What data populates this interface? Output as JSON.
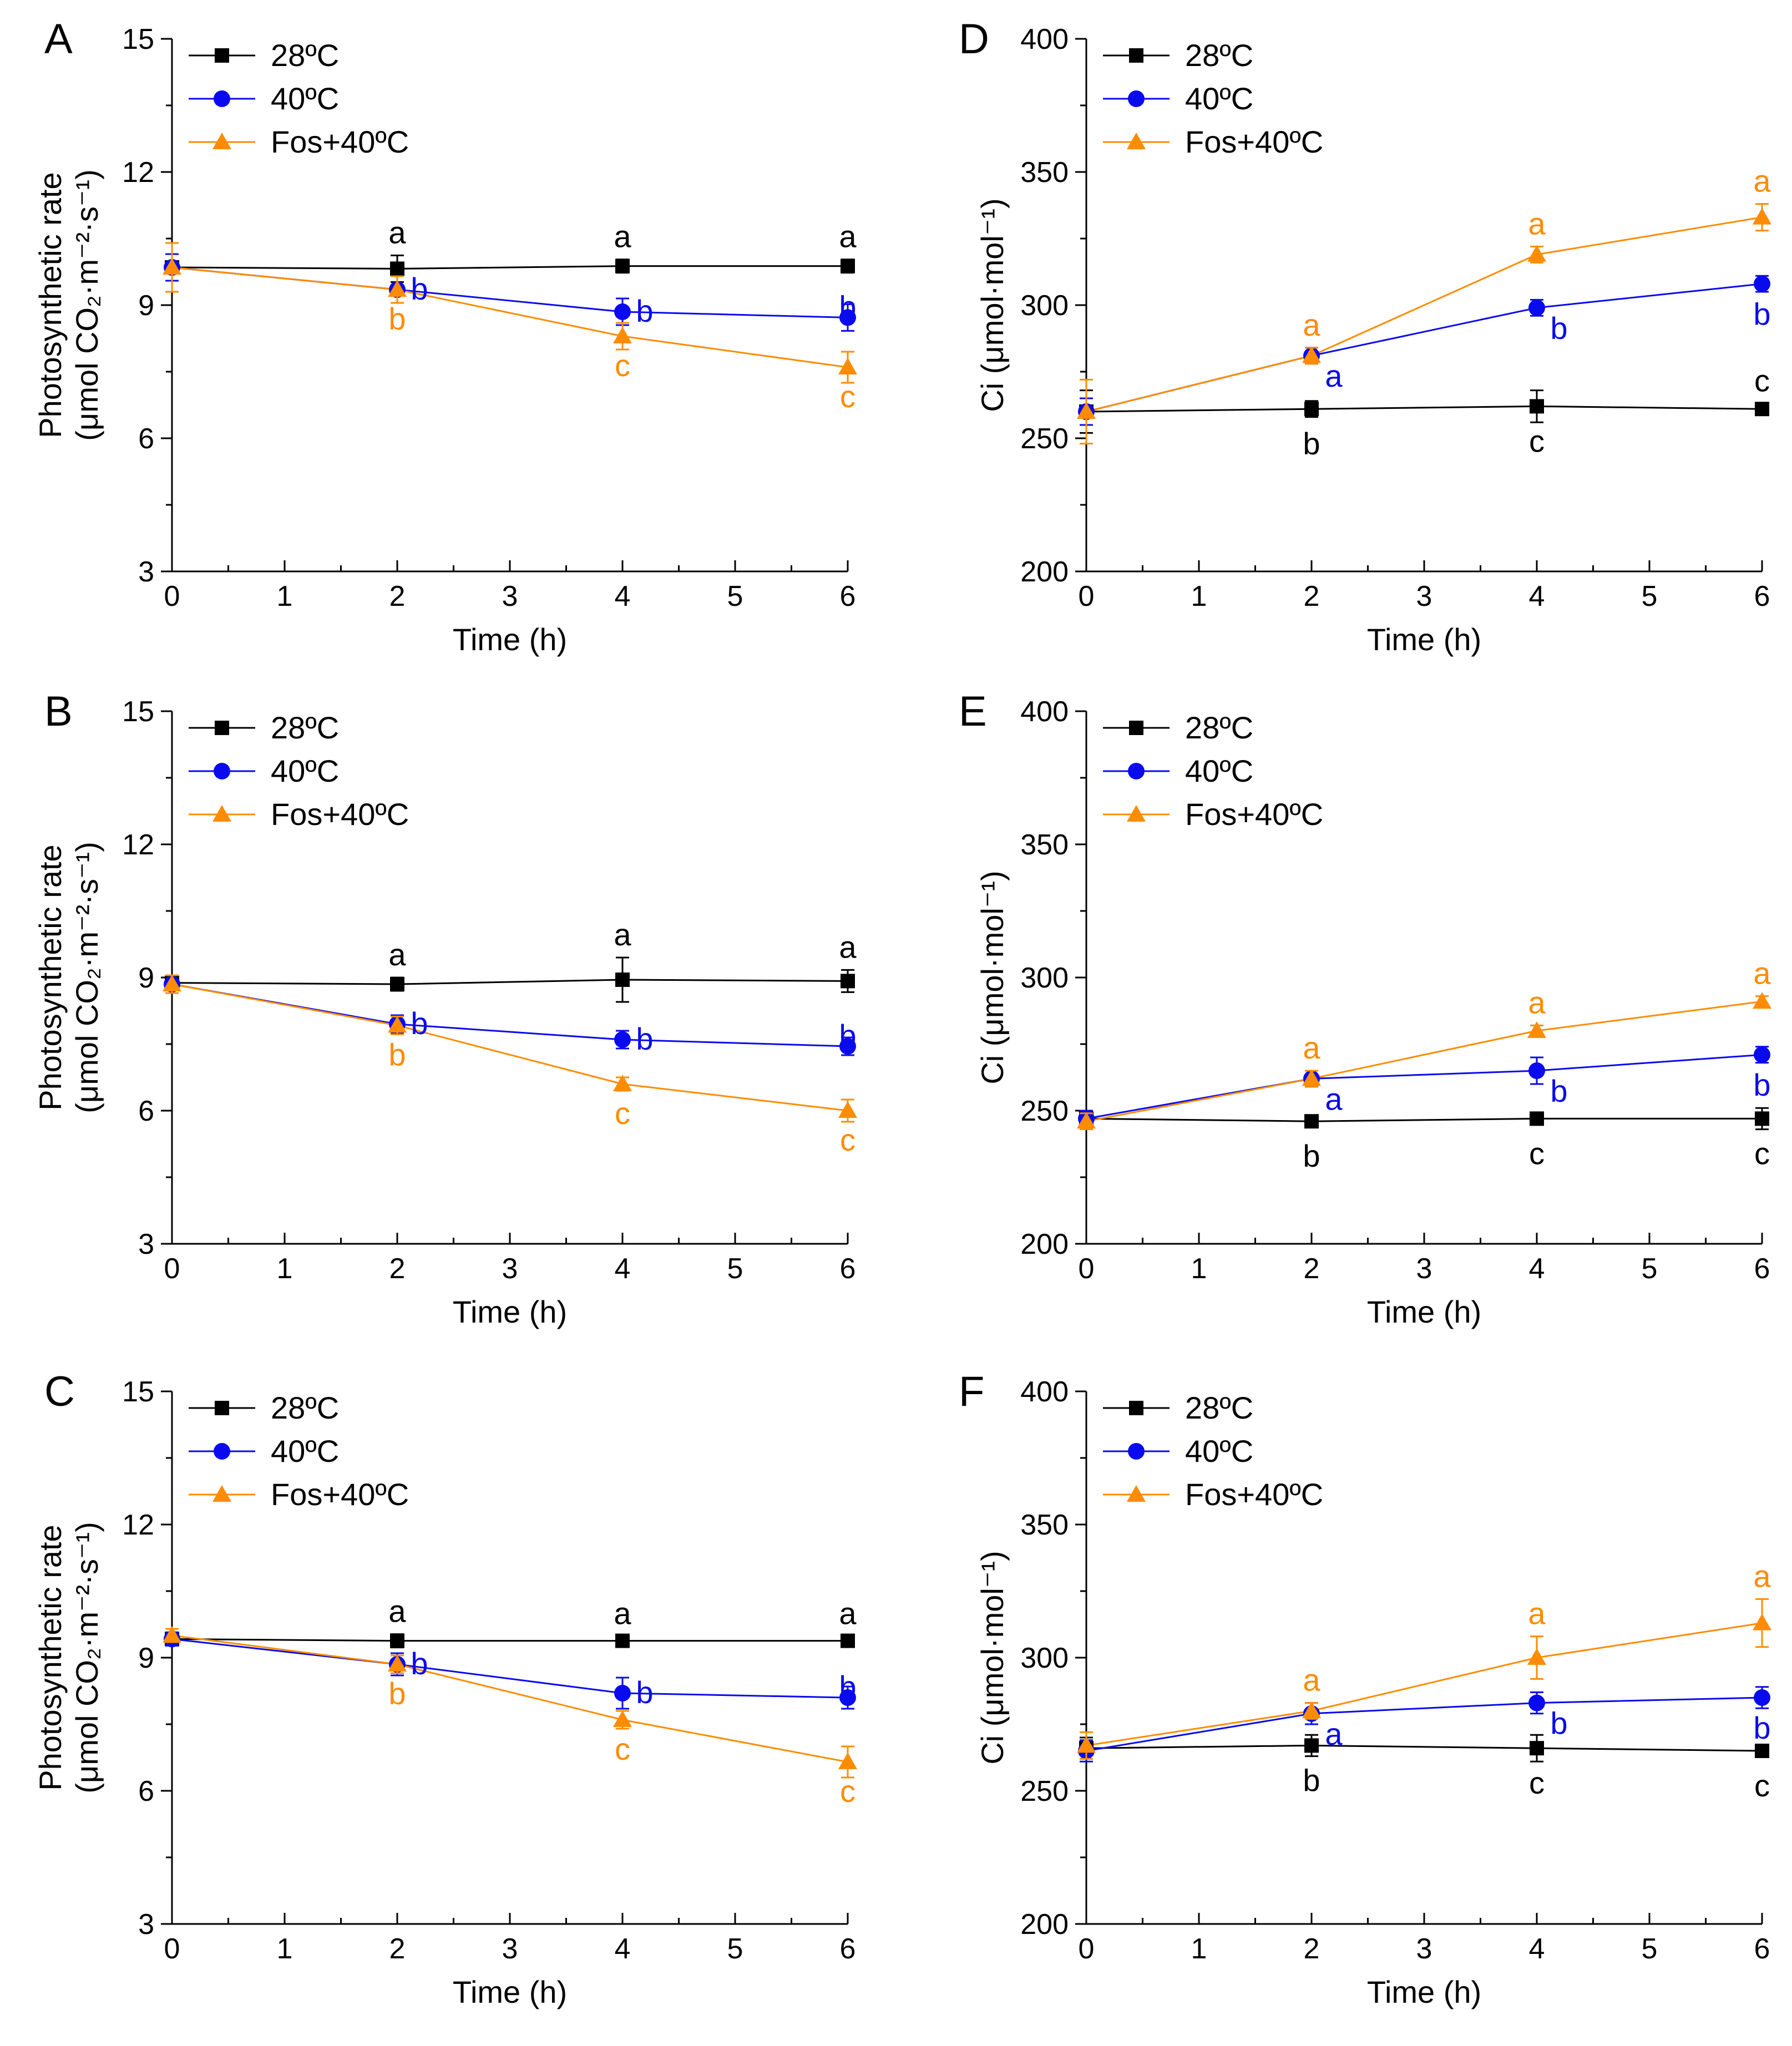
{
  "figure": {
    "series_styles": {
      "28C": {
        "color": "#000000",
        "marker": "square"
      },
      "40C": {
        "color": "#0a0aee",
        "marker": "circle"
      },
      "Fos40C": {
        "color": "#ff8c00",
        "marker": "triangle"
      }
    }
  },
  "chart_data": [
    {
      "id": "A",
      "type": "line",
      "panel_label": "A",
      "xlabel": "Time (h)",
      "ylabel": [
        "Photosynthetic rate",
        "(μmol CO₂·m⁻²·s⁻¹)"
      ],
      "xlim": [
        0,
        6
      ],
      "ylim": [
        3,
        15
      ],
      "xticks": [
        "0",
        "1",
        "2",
        "3",
        "4",
        "5",
        "6"
      ],
      "yticks": [
        "3",
        "6",
        "9",
        "12",
        "15"
      ],
      "x": [
        0,
        2,
        4,
        6
      ],
      "series": [
        {
          "key": "28C",
          "name": "28ºC",
          "values": [
            9.85,
            9.82,
            9.88,
            9.88
          ],
          "errors": [
            0.3,
            0.3,
            0.15,
            0.15
          ],
          "labels": [
            "",
            "a",
            "a",
            "a"
          ]
        },
        {
          "key": "40C",
          "name": "40ºC",
          "values": [
            9.85,
            9.35,
            8.85,
            8.72
          ],
          "errors": [
            0.3,
            0.3,
            0.3,
            0.3
          ],
          "labels": [
            "",
            "b",
            "b",
            "b"
          ]
        },
        {
          "key": "Fos40C",
          "name": "Fos+40ºC",
          "values": [
            9.85,
            9.35,
            8.3,
            7.6
          ],
          "errors": [
            0.55,
            0.3,
            0.3,
            0.35
          ],
          "labels": [
            "",
            "b",
            "c",
            "c"
          ]
        }
      ]
    },
    {
      "id": "B",
      "type": "line",
      "panel_label": "B",
      "xlabel": "Time (h)",
      "ylabel": [
        "Photosynthetic rate",
        "(μmol CO₂·m⁻²·s⁻¹)"
      ],
      "xlim": [
        0,
        6
      ],
      "ylim": [
        3,
        15
      ],
      "xticks": [
        "0",
        "1",
        "2",
        "3",
        "4",
        "5",
        "6"
      ],
      "yticks": [
        "3",
        "6",
        "9",
        "12",
        "15"
      ],
      "x": [
        0,
        2,
        4,
        6
      ],
      "series": [
        {
          "key": "28C",
          "name": "28ºC",
          "values": [
            8.88,
            8.85,
            8.95,
            8.92
          ],
          "errors": [
            0.15,
            0.15,
            0.5,
            0.25
          ],
          "labels": [
            "",
            "a",
            "a",
            "a"
          ]
        },
        {
          "key": "40C",
          "name": "40ºC",
          "values": [
            8.85,
            7.95,
            7.6,
            7.45
          ],
          "errors": [
            0.2,
            0.2,
            0.2,
            0.2
          ],
          "labels": [
            "",
            "b",
            "b",
            "b"
          ]
        },
        {
          "key": "Fos40C",
          "name": "Fos+40ºC",
          "values": [
            8.85,
            7.92,
            6.6,
            6.0
          ],
          "errors": [
            0.2,
            0.2,
            0.15,
            0.25
          ],
          "labels": [
            "",
            "b",
            "c",
            "c"
          ]
        }
      ]
    },
    {
      "id": "C",
      "type": "line",
      "panel_label": "C",
      "xlabel": "Time (h)",
      "ylabel": [
        "Photosynthetic rate",
        "(μmol CO₂·m⁻²·s⁻¹)"
      ],
      "xlim": [
        0,
        6
      ],
      "ylim": [
        3,
        15
      ],
      "xticks": [
        "0",
        "1",
        "2",
        "3",
        "4",
        "5",
        "6"
      ],
      "yticks": [
        "3",
        "6",
        "9",
        "12",
        "15"
      ],
      "x": [
        0,
        2,
        4,
        6
      ],
      "series": [
        {
          "key": "28C",
          "name": "28ºC",
          "values": [
            9.42,
            9.38,
            9.38,
            9.38
          ],
          "errors": [
            0.15,
            0.15,
            0.1,
            0.1
          ],
          "labels": [
            "",
            "a",
            "a",
            "a"
          ]
        },
        {
          "key": "40C",
          "name": "40ºC",
          "values": [
            9.42,
            8.85,
            8.2,
            8.1
          ],
          "errors": [
            0.15,
            0.25,
            0.35,
            0.25
          ],
          "labels": [
            "",
            "b",
            "b",
            "b"
          ]
        },
        {
          "key": "Fos40C",
          "name": "Fos+40ºC",
          "values": [
            9.5,
            8.85,
            7.6,
            6.65
          ],
          "errors": [
            0.15,
            0.2,
            0.2,
            0.35
          ],
          "labels": [
            "",
            "b",
            "c",
            "c"
          ]
        }
      ]
    },
    {
      "id": "D",
      "type": "line",
      "panel_label": "D",
      "xlabel": "Time (h)",
      "ylabel": [
        "Ci (μmol·mol⁻¹)"
      ],
      "xlim": [
        0,
        6
      ],
      "ylim": [
        200,
        400
      ],
      "xticks": [
        "0",
        "1",
        "2",
        "3",
        "4",
        "5",
        "6"
      ],
      "yticks": [
        "200",
        "250",
        "300",
        "350",
        "400"
      ],
      "x": [
        0,
        2,
        4,
        6
      ],
      "series": [
        {
          "key": "28C",
          "name": "28ºC",
          "values": [
            260,
            261,
            262,
            261
          ],
          "errors": [
            8,
            3,
            6,
            2
          ],
          "labels": [
            "",
            "b",
            "c",
            "c"
          ]
        },
        {
          "key": "40C",
          "name": "40ºC",
          "values": [
            260,
            281,
            299,
            308
          ],
          "errors": [
            5,
            3,
            3,
            3
          ],
          "labels": [
            "",
            "a",
            "b",
            "b"
          ]
        },
        {
          "key": "Fos40C",
          "name": "Fos+40ºC",
          "values": [
            260,
            281,
            319,
            333
          ],
          "errors": [
            12,
            3,
            3,
            5
          ],
          "labels": [
            "",
            "a",
            "a",
            "a"
          ]
        }
      ]
    },
    {
      "id": "E",
      "type": "line",
      "panel_label": "E",
      "xlabel": "Time (h)",
      "ylabel": [
        "Ci (μmol·mol⁻¹)"
      ],
      "xlim": [
        0,
        6
      ],
      "ylim": [
        200,
        400
      ],
      "xticks": [
        "0",
        "1",
        "2",
        "3",
        "4",
        "5",
        "6"
      ],
      "yticks": [
        "200",
        "250",
        "300",
        "350",
        "400"
      ],
      "x": [
        0,
        2,
        4,
        6
      ],
      "series": [
        {
          "key": "28C",
          "name": "28ºC",
          "values": [
            247,
            246,
            247,
            247
          ],
          "errors": [
            3,
            2,
            2,
            4
          ],
          "labels": [
            "",
            "b",
            "c",
            "c"
          ]
        },
        {
          "key": "40C",
          "name": "40ºC",
          "values": [
            247,
            262,
            265,
            271
          ],
          "errors": [
            3,
            3,
            5,
            3
          ],
          "labels": [
            "",
            "a",
            "b",
            "b"
          ]
        },
        {
          "key": "Fos40C",
          "name": "Fos+40ºC",
          "values": [
            246,
            262,
            280,
            291
          ],
          "errors": [
            3,
            3,
            2,
            2
          ],
          "labels": [
            "",
            "a",
            "a",
            "a"
          ]
        }
      ]
    },
    {
      "id": "F",
      "type": "line",
      "panel_label": "F",
      "xlabel": "Time (h)",
      "ylabel": [
        "Ci (μmol·mol⁻¹)"
      ],
      "xlim": [
        0,
        6
      ],
      "ylim": [
        200,
        400
      ],
      "xticks": [
        "0",
        "1",
        "2",
        "3",
        "4",
        "5",
        "6"
      ],
      "yticks": [
        "200",
        "250",
        "300",
        "350",
        "400"
      ],
      "x": [
        0,
        2,
        4,
        6
      ],
      "series": [
        {
          "key": "28C",
          "name": "28ºC",
          "values": [
            266,
            267,
            266,
            265
          ],
          "errors": [
            4,
            4,
            5,
            2
          ],
          "labels": [
            "",
            "b",
            "c",
            "c"
          ]
        },
        {
          "key": "40C",
          "name": "40ºC",
          "values": [
            265,
            279,
            283,
            285
          ],
          "errors": [
            4,
            4,
            4,
            4
          ],
          "labels": [
            "",
            "a",
            "b",
            "b"
          ]
        },
        {
          "key": "Fos40C",
          "name": "Fos+40ºC",
          "values": [
            267,
            280,
            300,
            313
          ],
          "errors": [
            5,
            3,
            8,
            9
          ],
          "labels": [
            "",
            "a",
            "a",
            "a"
          ]
        }
      ]
    }
  ]
}
